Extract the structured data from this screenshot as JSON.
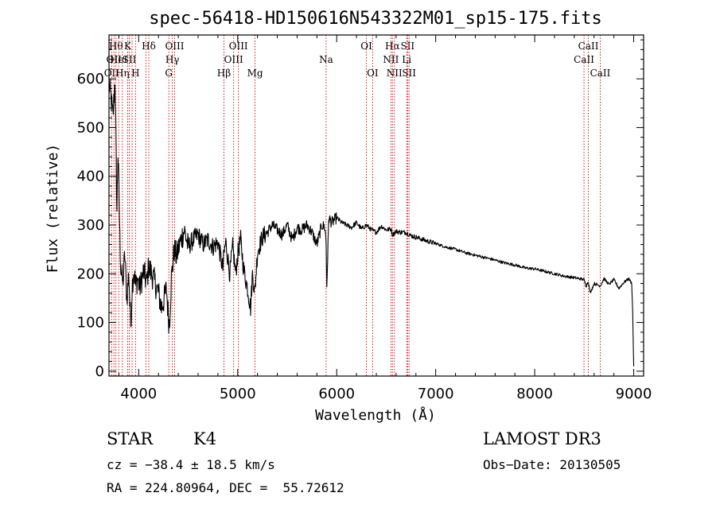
{
  "chart_data": {
    "type": "line",
    "title": "spec-56418-HD150616N543322M01_sp15-175.fits",
    "xlabel": "Wavelength (Å)",
    "ylabel": "Flux (relative)",
    "xlim": [
      3700,
      9100
    ],
    "ylim": [
      -10,
      690
    ],
    "xticks": [
      4000,
      5000,
      6000,
      7000,
      8000,
      9000
    ],
    "yticks": [
      0,
      100,
      200,
      300,
      400,
      500,
      600
    ],
    "series": [
      {
        "name": "spectrum",
        "x": [
          3700,
          3720,
          3740,
          3760,
          3770,
          3780,
          3790,
          3800,
          3810,
          3820,
          3840,
          3860,
          3880,
          3900,
          3920,
          3933,
          3950,
          3968,
          3990,
          4010,
          4050,
          4080,
          4100,
          4150,
          4200,
          4230,
          4260,
          4280,
          4300,
          4310,
          4330,
          4360,
          4380,
          4420,
          4460,
          4500,
          4550,
          4600,
          4650,
          4700,
          4750,
          4800,
          4850,
          4861,
          4880,
          4920,
          4950,
          4980,
          5000,
          5030,
          5060,
          5100,
          5130,
          5150,
          5172,
          5200,
          5250,
          5300,
          5350,
          5400,
          5450,
          5500,
          5550,
          5600,
          5650,
          5700,
          5750,
          5800,
          5850,
          5880,
          5893,
          5900,
          5920,
          5950,
          6000,
          6050,
          6100,
          6150,
          6200,
          6250,
          6300,
          6350,
          6400,
          6450,
          6500,
          6550,
          6563,
          6600,
          6650,
          6700,
          6750,
          6800,
          6900,
          7000,
          7100,
          7200,
          7300,
          7400,
          7500,
          7600,
          7700,
          7800,
          7900,
          8000,
          8100,
          8200,
          8300,
          8400,
          8498,
          8520,
          8542,
          8560,
          8600,
          8662,
          8700,
          8750,
          8800,
          8850,
          8900,
          8950,
          8980,
          8990,
          9000
        ],
        "y": [
          590,
          560,
          520,
          600,
          480,
          330,
          450,
          380,
          270,
          210,
          180,
          240,
          150,
          200,
          95,
          170,
          210,
          175,
          190,
          170,
          205,
          180,
          215,
          190,
          160,
          130,
          150,
          170,
          110,
          95,
          190,
          250,
          235,
          265,
          290,
          255,
          270,
          280,
          260,
          270,
          255,
          265,
          210,
          240,
          265,
          200,
          255,
          200,
          240,
          270,
          210,
          170,
          130,
          200,
          160,
          245,
          275,
          285,
          300,
          290,
          280,
          300,
          270,
          295,
          290,
          300,
          285,
          260,
          300,
          295,
          265,
          175,
          315,
          305,
          315,
          305,
          300,
          295,
          305,
          292,
          300,
          290,
          285,
          298,
          290,
          292,
          280,
          287,
          285,
          285,
          278,
          275,
          268,
          262,
          255,
          250,
          243,
          238,
          233,
          228,
          222,
          218,
          212,
          210,
          205,
          200,
          195,
          192,
          188,
          175,
          185,
          160,
          180,
          175,
          190,
          178,
          188,
          170,
          182,
          190,
          180,
          120,
          10
        ]
      }
    ],
    "spectral_lines": [
      {
        "wl": 3727,
        "label": "OII",
        "row": 3
      },
      {
        "wl": 3750,
        "label": "OII",
        "row": 2
      },
      {
        "wl": 3770,
        "label": "Hθ",
        "row": 1
      },
      {
        "wl": 3798,
        "label": "HeI",
        "row": 2
      },
      {
        "wl": 3835,
        "label": "Hη",
        "row": 3
      },
      {
        "wl": 3889,
        "label": "K",
        "row": 1
      },
      {
        "wl": 3905,
        "label": "SII",
        "row": 2
      },
      {
        "wl": 3933,
        "label": "",
        "row": 0
      },
      {
        "wl": 3968,
        "label": "H",
        "row": 3
      },
      {
        "wl": 4072,
        "label": "",
        "row": 0
      },
      {
        "wl": 4102,
        "label": "Hδ",
        "row": 1
      },
      {
        "wl": 4304,
        "label": "G",
        "row": 3
      },
      {
        "wl": 4340,
        "label": "Hγ",
        "row": 2
      },
      {
        "wl": 4363,
        "label": "OIII",
        "row": 1
      },
      {
        "wl": 4861,
        "label": "Hβ",
        "row": 3
      },
      {
        "wl": 4959,
        "label": "OIII",
        "row": 2
      },
      {
        "wl": 5007,
        "label": "OIII",
        "row": 1
      },
      {
        "wl": 5175,
        "label": "Mg",
        "row": 3
      },
      {
        "wl": 5893,
        "label": "Na",
        "row": 2
      },
      {
        "wl": 6300,
        "label": "OI",
        "row": 1
      },
      {
        "wl": 6363,
        "label": "OI",
        "row": 3
      },
      {
        "wl": 6548,
        "label": "NII",
        "row": 2
      },
      {
        "wl": 6563,
        "label": "Hα",
        "row": 1
      },
      {
        "wl": 6583,
        "label": "NII",
        "row": 3
      },
      {
        "wl": 6707,
        "label": "Li",
        "row": 2
      },
      {
        "wl": 6716,
        "label": "SII",
        "row": 1
      },
      {
        "wl": 6731,
        "label": "SII",
        "row": 3
      },
      {
        "wl": 8498,
        "label": "CaII",
        "row": 2
      },
      {
        "wl": 8542,
        "label": "CaII",
        "row": 1
      },
      {
        "wl": 8662,
        "label": "CaII",
        "row": 3
      }
    ]
  },
  "info": {
    "object_type": "STAR",
    "subclass": "K4",
    "survey": "LAMOST DR3",
    "cz": "cz = −38.4 ± 18.5 km/s",
    "obs_date": "Obs−Date: 20130505",
    "coords": "RA = 224.80964, DEC =  55.72612"
  },
  "colors": {
    "line": "#000000",
    "marker_line": "#cc0000",
    "axis": "#000000"
  }
}
